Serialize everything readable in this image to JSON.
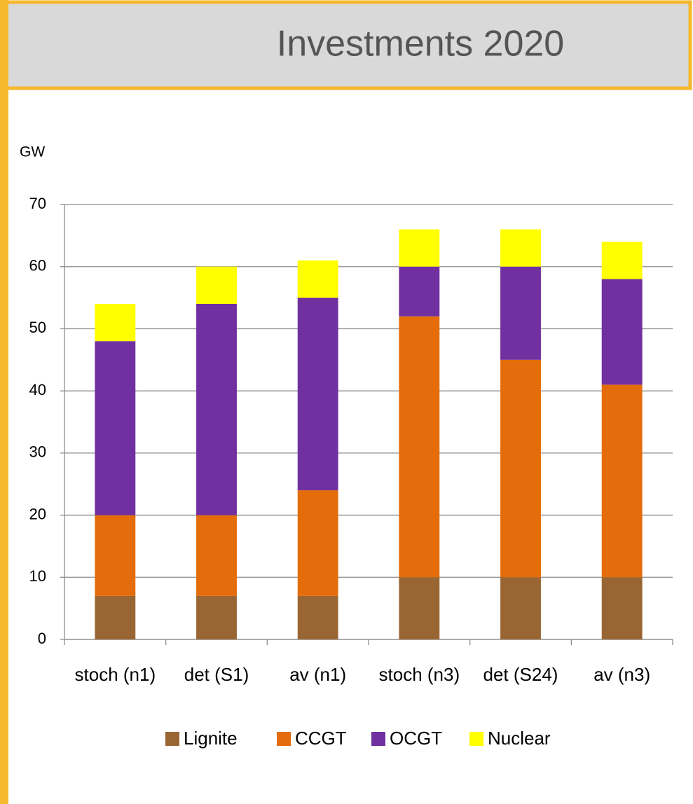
{
  "chart_data": {
    "type": "bar",
    "stacked": true,
    "title": "Investments 2020",
    "y_label": "GW",
    "categories": [
      "stoch (n1)",
      "det (S1)",
      "av (n1)",
      "stoch (n3)",
      "det (S24)",
      "av (n3)"
    ],
    "series": [
      {
        "name": "Lignite",
        "color": "#996633",
        "values": [
          7,
          7,
          7,
          10,
          10,
          10
        ]
      },
      {
        "name": "CCGT",
        "color": "#e46c0a",
        "values": [
          13,
          13,
          17,
          42,
          35,
          31
        ]
      },
      {
        "name": "OCGT",
        "color": "#7030a0",
        "values": [
          28,
          34,
          31,
          8,
          15,
          17
        ]
      },
      {
        "name": "Nuclear",
        "color": "#ffff00",
        "values": [
          6,
          6,
          6,
          6,
          6,
          6
        ]
      }
    ],
    "ylim": [
      0,
      70
    ],
    "yticks": [
      0,
      10,
      20,
      30,
      40,
      50,
      60,
      70
    ],
    "grid": true,
    "legend": "bottom"
  }
}
